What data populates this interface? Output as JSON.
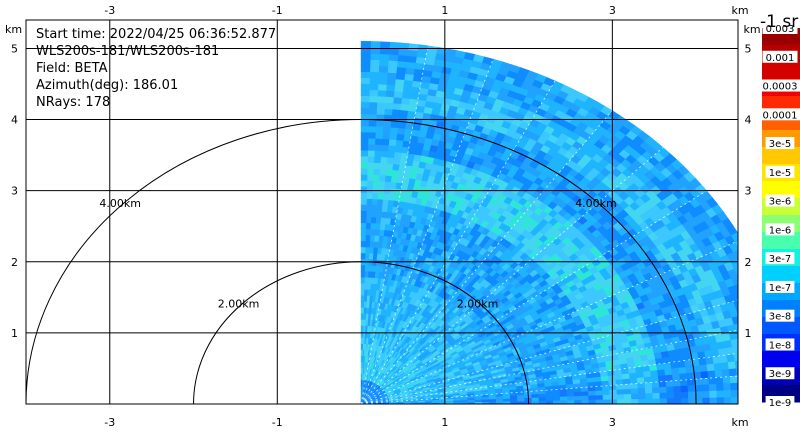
{
  "chart_data": {
    "type": "heatmap",
    "info": {
      "start_time": "Start time: 2022/04/25 06:36:52.877",
      "instrument": "WLS200s-181/WLS200s-181",
      "field": "Field: BETA",
      "azimuth": "Azimuth(deg): 186.01",
      "nrays": "NRays: 178"
    },
    "x_unit": "km",
    "y_unit": "km",
    "xlim": [
      -4.0,
      4.5
    ],
    "ylim": [
      0,
      5.4
    ],
    "x_ticks": [
      -3,
      -1,
      1,
      3
    ],
    "y_ticks": [
      1,
      2,
      3,
      4,
      5
    ],
    "range_rings": [
      {
        "radius_km": 2,
        "label": "2.00km"
      },
      {
        "radius_km": 4,
        "label": "4.00km"
      }
    ],
    "sector": {
      "min_angle_deg": 0,
      "max_angle_deg": 90,
      "max_range_km": 5.1
    },
    "colorbar": {
      "title": "-1 sr",
      "labels": [
        "0.003",
        "0.001",
        "0.0003",
        "0.0001",
        "3e-5",
        "1e-5",
        "3e-6",
        "1e-6",
        "3e-7",
        "1e-7",
        "3e-8",
        "1e-8",
        "3e-9",
        "1e-9"
      ],
      "colors": [
        "#9b0000",
        "#b80000",
        "#d40000",
        "#f00000",
        "#ff2a00",
        "#ff6000",
        "#ff9a00",
        "#ffc800",
        "#ffe400",
        "#ffff00",
        "#c8ff36",
        "#8cff70",
        "#48ffae",
        "#16f0de",
        "#00d0ff",
        "#00a8ff",
        "#0080ff",
        "#0058ff",
        "#0030ff",
        "#0000ee",
        "#0000b8",
        "#000084"
      ]
    }
  }
}
